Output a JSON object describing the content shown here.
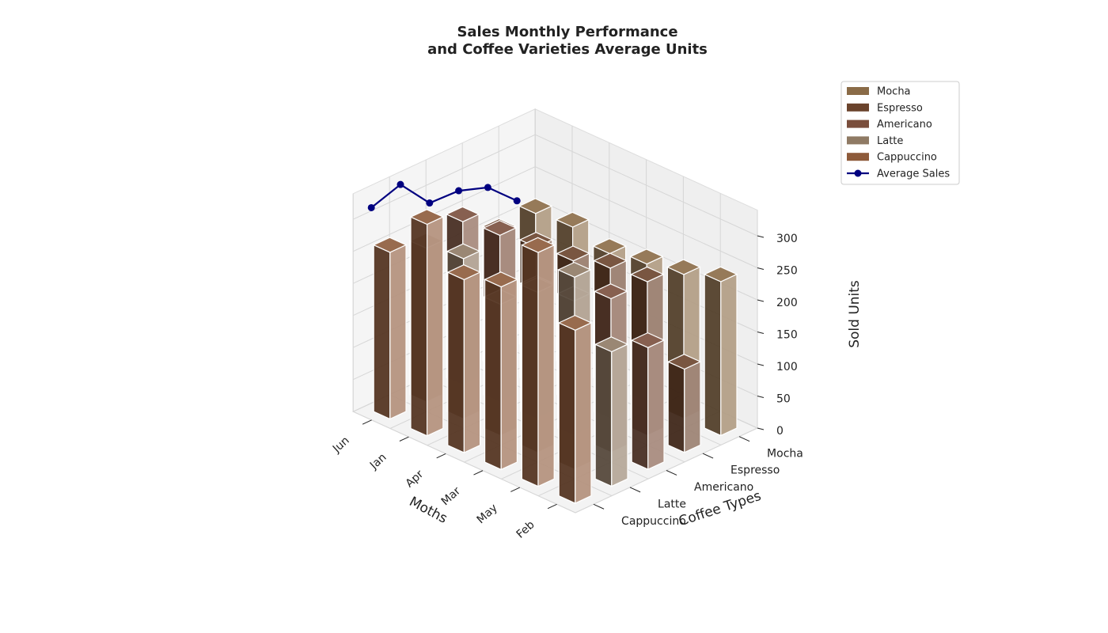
{
  "chart_data": {
    "type": "bar3d",
    "title_line1": "Sales Monthly Performance",
    "title_line2": "and Coffee Varieties Average Units",
    "xlabel": "Moths",
    "ylabel": "Coffee Types",
    "zlabel": "Sold Units",
    "months": [
      "Feb",
      "May",
      "Mar",
      "Apr",
      "Jan",
      "Jun"
    ],
    "coffee_types": [
      "Cappuccino",
      "Latte",
      "Americano",
      "Espresso",
      "Mocha"
    ],
    "zlim": [
      0,
      340
    ],
    "zticks": [
      0,
      50,
      100,
      150,
      200,
      250,
      300
    ],
    "series": [
      {
        "name": "Cappuccino",
        "color": "#8d5a3a",
        "values": [
          260,
          330,
          270,
          285,
          365,
          270
        ]
      },
      {
        "name": "Latte",
        "color": "#8f7a64",
        "values": [
          240,
          250,
          205,
          250,
          300,
          210
        ]
      },
      {
        "name": "Americano",
        "color": "#7a4e3c",
        "values": [
          255,
          260,
          200,
          210,
          240,
          190
        ]
      },
      {
        "name": "Espresso",
        "color": "#6a432c",
        "values": [
          210,
          215,
          220,
          235,
          240,
          130
        ]
      },
      {
        "name": "Mocha",
        "color": "#8a6b47",
        "values": [
          215,
          220,
          205,
          215,
          225,
          240
        ]
      }
    ],
    "average_sales": {
      "name": "Average Sales",
      "color": "#000080",
      "values": [
        305,
        320,
        270,
        268,
        252,
        210
      ]
    },
    "legend": [
      "Mocha",
      "Espresso",
      "Americano",
      "Latte",
      "Cappuccino",
      "Average Sales"
    ],
    "legend_placement": "top-right",
    "grid": true
  }
}
